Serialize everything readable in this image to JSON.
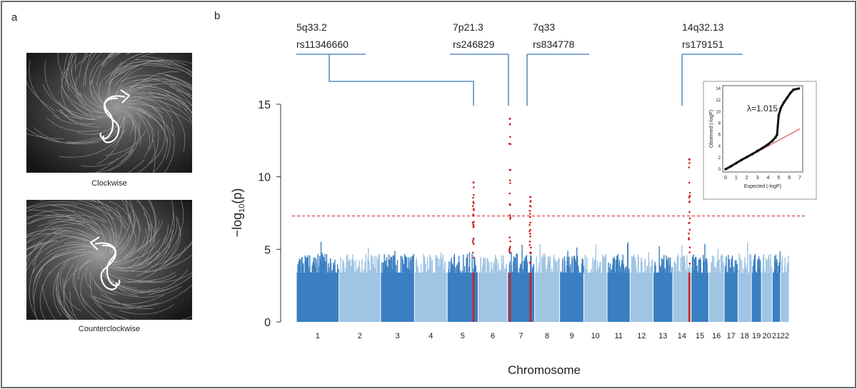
{
  "panel_a": {
    "letter": "a",
    "photos": [
      {
        "caption": "Clockwise"
      },
      {
        "caption": "Counterclockwise"
      }
    ]
  },
  "panel_b": {
    "letter": "b"
  },
  "chart_data": [
    {
      "type": "scatter",
      "subtype": "manhattan",
      "title": "",
      "xlabel": "Chromosome",
      "ylabel": "−log10(p)",
      "ylim": [
        0,
        16
      ],
      "yticks": [
        0,
        5,
        10,
        15
      ],
      "grid": false,
      "significance_threshold": 7.3,
      "threshold_color": "#e03030",
      "colors": {
        "dark": "#3a7fc1",
        "light": "#9fc4e4",
        "hit": "#cc2222"
      },
      "chromosomes": [
        {
          "label": "1",
          "span": 249
        },
        {
          "label": "2",
          "span": 243
        },
        {
          "label": "3",
          "span": 198
        },
        {
          "label": "4",
          "span": 191
        },
        {
          "label": "5",
          "span": 181
        },
        {
          "label": "6",
          "span": 171
        },
        {
          "label": "7",
          "span": 159
        },
        {
          "label": "8",
          "span": 146
        },
        {
          "label": "9",
          "span": 141
        },
        {
          "label": "10",
          "span": 136
        },
        {
          "label": "11",
          "span": 135
        },
        {
          "label": "12",
          "span": 134
        },
        {
          "label": "13",
          "span": 115
        },
        {
          "label": "14",
          "span": 107
        },
        {
          "label": "15",
          "span": 103
        },
        {
          "label": "16",
          "span": 90
        },
        {
          "label": "17",
          "span": 81
        },
        {
          "label": "18",
          "span": 78
        },
        {
          "label": "19",
          "span": 59
        },
        {
          "label": "20",
          "span": 63
        },
        {
          "label": "21",
          "span": 48
        },
        {
          "label": "22",
          "span": 51
        }
      ],
      "loci": [
        {
          "band": "5q33.2",
          "snp": "rs11346660",
          "chromosome": "5",
          "position": 0.85,
          "peak": 9.6
        },
        {
          "band": "7p21.3",
          "snp": "rs246829",
          "chromosome": "7",
          "position": 0.09,
          "peak": 14.0
        },
        {
          "band": "7q33",
          "snp": "rs834778",
          "chromosome": "7",
          "position": 0.84,
          "peak": 8.6
        },
        {
          "band": "14q32.13",
          "snp": "rs179151",
          "chromosome": "14",
          "position": 0.9,
          "peak": 11.2
        }
      ]
    },
    {
      "type": "scatter",
      "subtype": "qq-plot",
      "xlabel": "Expected (-logP)",
      "ylabel": "Observed (-logP)",
      "xlim": [
        0,
        7
      ],
      "ylim": [
        0,
        14
      ],
      "xticks": [
        0,
        1,
        2,
        3,
        4,
        5,
        6,
        7
      ],
      "yticks": [
        0,
        2,
        4,
        6,
        8,
        10,
        12,
        14
      ],
      "annotation": "λ=1.015",
      "reference_line": {
        "from": [
          0,
          0
        ],
        "to": [
          7,
          7
        ],
        "color": "#d04a4a"
      },
      "points": [
        [
          0,
          0
        ],
        [
          0.5,
          0.5
        ],
        [
          1,
          1.05
        ],
        [
          1.5,
          1.6
        ],
        [
          2,
          2.1
        ],
        [
          2.5,
          2.6
        ],
        [
          3,
          3.15
        ],
        [
          3.5,
          3.7
        ],
        [
          4,
          4.3
        ],
        [
          4.4,
          4.9
        ],
        [
          4.7,
          5.5
        ],
        [
          4.85,
          6.0
        ],
        [
          5.0,
          9.3
        ],
        [
          5.2,
          10.6
        ],
        [
          5.5,
          11.6
        ],
        [
          5.8,
          12.4
        ],
        [
          6.1,
          13.2
        ],
        [
          6.4,
          13.8
        ],
        [
          6.9,
          14.0
        ]
      ]
    }
  ]
}
